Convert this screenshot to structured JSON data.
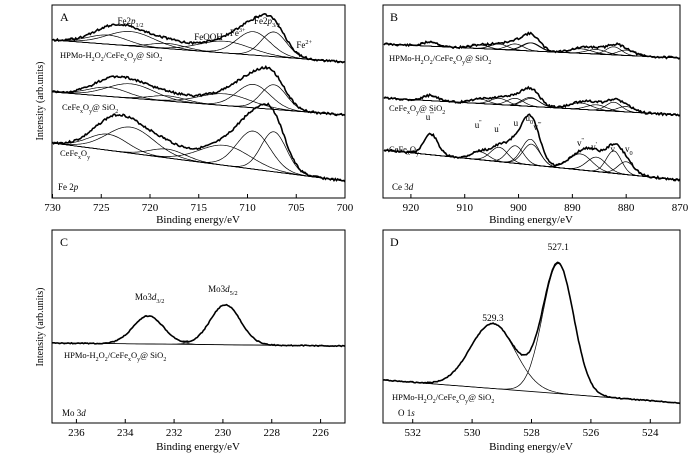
{
  "chart_data": [
    {
      "panel": "A",
      "type": "line",
      "xlabel": "Binding energy/eV",
      "ylabel": "Intensity (arb.units)",
      "xlim": [
        730,
        700
      ],
      "xticks": [
        730,
        725,
        720,
        715,
        710,
        705,
        700
      ],
      "x_reversed": true,
      "corner_label": [
        "Fe 2",
        "p"
      ],
      "series": [
        {
          "name": "HPMo-H2O2/CeFexOy@ SiO2",
          "label_main": "HPMo-H",
          "label_parts": [
            "2",
            "O",
            "2",
            "/CeFe",
            "x",
            "O",
            "y",
            "@ SiO",
            "2"
          ]
        },
        {
          "name": "CeFexOy@ SiO2",
          "label_parts": [
            "CeFe",
            "x",
            "O",
            "y",
            "@ SiO",
            "2"
          ]
        },
        {
          "name": "CeFexOy",
          "label_parts": [
            "CeFe",
            "x",
            "O",
            "y"
          ]
        }
      ],
      "annotations": [
        {
          "text": "Fe2p1/2",
          "main": "Fe2",
          "it": "p",
          "sub": "1/2",
          "x": 722
        },
        {
          "text": "FeOOH",
          "main": "FeOOH",
          "x": 714
        },
        {
          "text": "Fe3+",
          "main": "Fe",
          "sup": "3+",
          "x": 711
        },
        {
          "text": "Fe2p3/2",
          "main": "Fe2",
          "it": "p",
          "sub": "3/2",
          "x": 708
        },
        {
          "text": "Fe2+",
          "main": "Fe",
          "sup": "2+",
          "x": 705
        }
      ],
      "peaks": [
        {
          "center": 707.3,
          "width": 1.3
        },
        {
          "center": 709.4,
          "width": 1.7
        },
        {
          "center": 712.3,
          "width": 2.6
        },
        {
          "center": 718.2,
          "width": 1.8
        },
        {
          "center": 722.0,
          "width": 2.4
        },
        {
          "center": 724.3,
          "width": 2.0
        }
      ],
      "peak_amplitudes": [
        [
          0.95,
          0.9,
          0.45,
          0.2,
          0.55,
          0.35
        ],
        [
          0.95,
          0.9,
          0.45,
          0.2,
          0.55,
          0.35
        ],
        [
          1.0,
          0.95,
          0.5,
          0.22,
          0.65,
          0.4
        ]
      ]
    },
    {
      "panel": "B",
      "type": "line",
      "xlabel": "Binding energy/eV",
      "xlim": [
        925,
        870
      ],
      "xticks": [
        920,
        910,
        900,
        890,
        880,
        870
      ],
      "x_reversed": true,
      "corner_label": [
        "Ce 3",
        "d"
      ],
      "series": [
        {
          "name": "HPMo-H2O2/CeFexOy@ SiO2",
          "label_main": "HPMo-H",
          "label_parts": [
            "2",
            "O",
            "2",
            "/CeFe",
            "x",
            "O",
            "y",
            "@ SiO",
            "2"
          ]
        },
        {
          "name": "CeFexOy@ SiO2",
          "label_parts": [
            "CeFe",
            "x",
            "O",
            "y",
            "@ SiO",
            "2"
          ]
        },
        {
          "name": "CeFexOy",
          "label_parts": [
            "CeFe",
            "x",
            "O",
            "y"
          ]
        }
      ],
      "annotations": [
        {
          "text": "u'''",
          "main": "u",
          "sup": "'''",
          "x": 916.5
        },
        {
          "text": "u''",
          "main": "u",
          "sup": "''",
          "x": 907.5
        },
        {
          "text": "u'",
          "main": "u",
          "sup": "'",
          "x": 904.0
        },
        {
          "text": "u",
          "main": "u",
          "x": 900.5
        },
        {
          "text": "u0",
          "main": "u",
          "sub": "0",
          "x": 898.0
        },
        {
          "text": "v'''",
          "main": "v",
          "sup": "'''",
          "x": 896.5
        },
        {
          "text": "v''",
          "main": "v",
          "sup": "''",
          "x": 888.5
        },
        {
          "text": "v'",
          "main": "v",
          "sup": "'",
          "x": 886.0
        },
        {
          "text": "v",
          "main": "v",
          "x": 882.5
        },
        {
          "text": "v0",
          "main": "v",
          "sub": "0",
          "x": 879.5
        }
      ],
      "peaks": [
        {
          "center": 916.3,
          "width": 1.3
        },
        {
          "center": 907.2,
          "width": 1.6
        },
        {
          "center": 903.6,
          "width": 1.6
        },
        {
          "center": 900.6,
          "width": 1.5
        },
        {
          "center": 897.8,
          "width": 1.6
        },
        {
          "center": 897.6,
          "width": 1.6
        },
        {
          "center": 888.5,
          "width": 2.1
        },
        {
          "center": 885.5,
          "width": 1.8
        },
        {
          "center": 882.3,
          "width": 1.4
        },
        {
          "center": 880.0,
          "width": 1.5
        }
      ],
      "peak_amplitudes": [
        [
          0.25,
          0.2,
          0.3,
          0.35,
          0.45,
          0.45,
          0.25,
          0.25,
          0.45,
          0.3
        ],
        [
          0.3,
          0.25,
          0.35,
          0.4,
          0.5,
          0.45,
          0.35,
          0.3,
          0.5,
          0.3
        ],
        [
          0.65,
          0.25,
          0.45,
          0.55,
          0.8,
          0.65,
          0.5,
          0.45,
          0.7,
          0.4
        ]
      ]
    },
    {
      "panel": "C",
      "type": "line",
      "xlabel": "Binding energy/eV",
      "ylabel": "Intensity (arb.units)",
      "xlim": [
        237,
        225
      ],
      "xticks": [
        236,
        234,
        232,
        230,
        228,
        226
      ],
      "x_reversed": true,
      "corner_label": [
        "Mo 3",
        "d"
      ],
      "series": [
        {
          "name": "HPMo-H2O2/CeFexOy@ SiO2",
          "label_main": "HPMo-H",
          "label_parts": [
            "2",
            "O",
            "2",
            "/CeFe",
            "x",
            "O",
            "y",
            "@ SiO",
            "2"
          ]
        }
      ],
      "annotations": [
        {
          "text": "Mo3d3/2",
          "main": "Mo3",
          "it": "d",
          "sub": "3/2",
          "x": 233.0
        },
        {
          "text": "Mo3d5/2",
          "main": "Mo3",
          "it": "d",
          "sub": "5/2",
          "x": 230.0
        }
      ],
      "peaks": [
        {
          "center": 233.05,
          "width": 0.62
        },
        {
          "center": 229.9,
          "width": 0.62
        }
      ],
      "peak_amplitudes": [
        [
          0.7,
          1.0
        ]
      ]
    },
    {
      "panel": "D",
      "type": "line",
      "xlabel": "Binding energy/eV",
      "xlim": [
        533,
        523
      ],
      "xticks": [
        532,
        530,
        528,
        526,
        524
      ],
      "x_reversed": true,
      "corner_label": [
        "O 1",
        "s"
      ],
      "series": [
        {
          "name": "HPMo-H2O2/CeFexOy@ SiO2",
          "label_main": "HPMo-H",
          "label_parts": [
            "2",
            "O",
            "2",
            "/CeFe",
            "x",
            "O",
            "y",
            "@ SiO",
            "2"
          ]
        }
      ],
      "annotations": [
        {
          "text": "529.3",
          "main": "529.3",
          "x": 529.3
        },
        {
          "text": "527.1",
          "main": "527.1",
          "x": 527.1
        }
      ],
      "peaks": [
        {
          "center": 529.3,
          "width": 0.75
        },
        {
          "center": 527.1,
          "width": 0.52
        }
      ],
      "peak_amplitudes": [
        [
          0.5,
          1.0
        ]
      ]
    }
  ]
}
